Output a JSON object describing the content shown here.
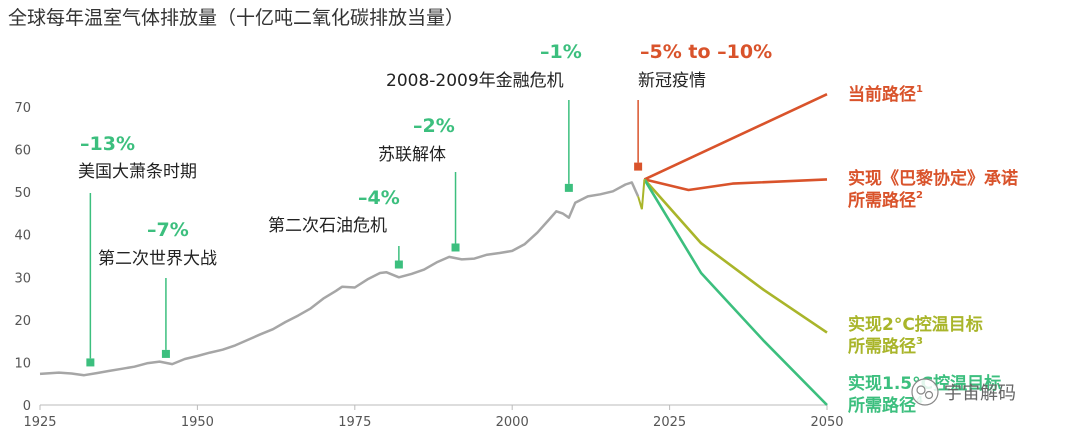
{
  "chart_data": {
    "type": "line",
    "title": "全球每年温室气体排放量（十亿吨二氧化碳排放当量）",
    "xlabel": "",
    "ylabel": "",
    "xlim": [
      1925,
      2050
    ],
    "ylim": [
      0,
      70
    ],
    "x_ticks": [
      "1925",
      "1950",
      "1975",
      "2000",
      "2025",
      "2050"
    ],
    "y_ticks": [
      "0",
      "10",
      "20",
      "30",
      "40",
      "50",
      "60",
      "70"
    ],
    "grid": false,
    "historical": {
      "x": [
        1925,
        1928,
        1930,
        1932,
        1934,
        1936,
        1938,
        1940,
        1942,
        1944,
        1946,
        1948,
        1950,
        1952,
        1954,
        1956,
        1958,
        1960,
        1962,
        1964,
        1966,
        1968,
        1970,
        1972,
        1973,
        1975,
        1977,
        1979,
        1980,
        1982,
        1984,
        1986,
        1988,
        1990,
        1992,
        1994,
        1996,
        1998,
        2000,
        2002,
        2004,
        2006,
        2007,
        2008,
        2009,
        2010,
        2012,
        2014,
        2016,
        2018,
        2019,
        2020
      ],
      "y": [
        7.3,
        7.6,
        7.4,
        7.0,
        7.5,
        8.0,
        8.5,
        9.0,
        9.8,
        10.2,
        9.6,
        10.8,
        11.5,
        12.3,
        13.0,
        14.0,
        15.3,
        16.6,
        17.8,
        19.5,
        21.0,
        22.7,
        25.0,
        26.8,
        27.8,
        27.6,
        29.5,
        31.0,
        31.2,
        30.0,
        30.8,
        31.8,
        33.5,
        34.8,
        34.2,
        34.4,
        35.3,
        35.7,
        36.2,
        37.8,
        40.5,
        43.8,
        45.5,
        45.0,
        44.0,
        47.5,
        49.0,
        49.5,
        50.2,
        51.8,
        52.3,
        49.0
      ]
    },
    "events": [
      {
        "x": 1933,
        "y": 10,
        "pct": "–13%",
        "label": "美国大萧条时期"
      },
      {
        "x": 1945,
        "y": 12,
        "pct": "–7%",
        "label": "第二次世界大战"
      },
      {
        "x": 1982,
        "y": 33,
        "pct": "–4%",
        "label": "第二次石油危机"
      },
      {
        "x": 1991,
        "y": 37,
        "pct": "–2%",
        "label": "苏联解体"
      },
      {
        "x": 2009,
        "y": 51,
        "pct": "–1%",
        "label": "2008-2009年金融危机"
      },
      {
        "x": 2020,
        "y": 56,
        "pct": "–5% to –10%",
        "label": "新冠疫情"
      }
    ],
    "series": [
      {
        "name": "当前路径",
        "sup": "1",
        "color": "#d9532b",
        "x": [
          2021,
          2050
        ],
        "y": [
          53,
          73
        ]
      },
      {
        "name": "实现《巴黎协定》承诺所需路径",
        "line1": "实现《巴黎协定》承诺",
        "line2": "所需路径",
        "sup": "2",
        "color": "#d9532b",
        "x": [
          2021,
          2028,
          2035,
          2050
        ],
        "y": [
          53,
          50.5,
          52,
          53
        ]
      },
      {
        "name": "实现2°C控温目标所需路径",
        "line1": "实现2°C控温目标",
        "line2": "所需路径",
        "sup": "3",
        "color": "#a9b52a",
        "x": [
          2021,
          2030,
          2040,
          2050
        ],
        "y": [
          53,
          38,
          27,
          17
        ]
      },
      {
        "name": "实现1.5°C控温目标所需路径",
        "line1": "实现1.5°C控温目标",
        "line2": "所需路径",
        "sup": "4",
        "color": "#3cbf7e",
        "x": [
          2021,
          2030,
          2040,
          2050
        ],
        "y": [
          53,
          31,
          15,
          0
        ]
      }
    ],
    "colors": {
      "historical": "#a6a6a6",
      "event_green": "#3cbf7e",
      "event_red": "#d9532b"
    }
  },
  "watermark": "宇宙解码"
}
